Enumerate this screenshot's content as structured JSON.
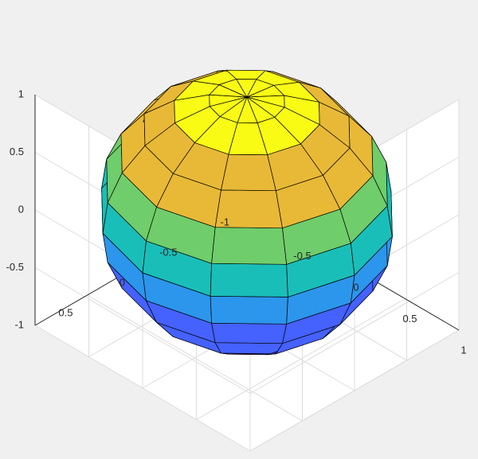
{
  "chart_data": {
    "type": "surface",
    "title": "",
    "surface": "unit sphere",
    "colormap": "parula",
    "facet_edges": true,
    "edge_color": "#000000",
    "sphere_n": 12,
    "view": "default 3-D",
    "grid": true,
    "xlabel": "",
    "ylabel": "",
    "zlabel": "",
    "xlim": [
      -1,
      1
    ],
    "ylim": [
      -1,
      1
    ],
    "zlim": [
      -1,
      1
    ],
    "xticks": [
      -0.5,
      0,
      0.5,
      1
    ],
    "yticks": [
      -1,
      -0.5,
      0,
      0.5
    ],
    "zticks": [
      -1,
      -0.5,
      0,
      0.5,
      1
    ],
    "xtick_labels": [
      "-0.5",
      "0",
      "0.5",
      "1"
    ],
    "ytick_labels": [
      "-1",
      "-0.5",
      "0",
      "0.5"
    ],
    "ztick_labels": [
      "-1",
      "-0.5",
      "0",
      "0.5",
      "1"
    ],
    "band_colors": [
      "#3e26a8",
      "#4561fe",
      "#2c96ec",
      "#1abeb8",
      "#6fcd6b",
      "#e8b936",
      "#f9fb15"
    ]
  }
}
